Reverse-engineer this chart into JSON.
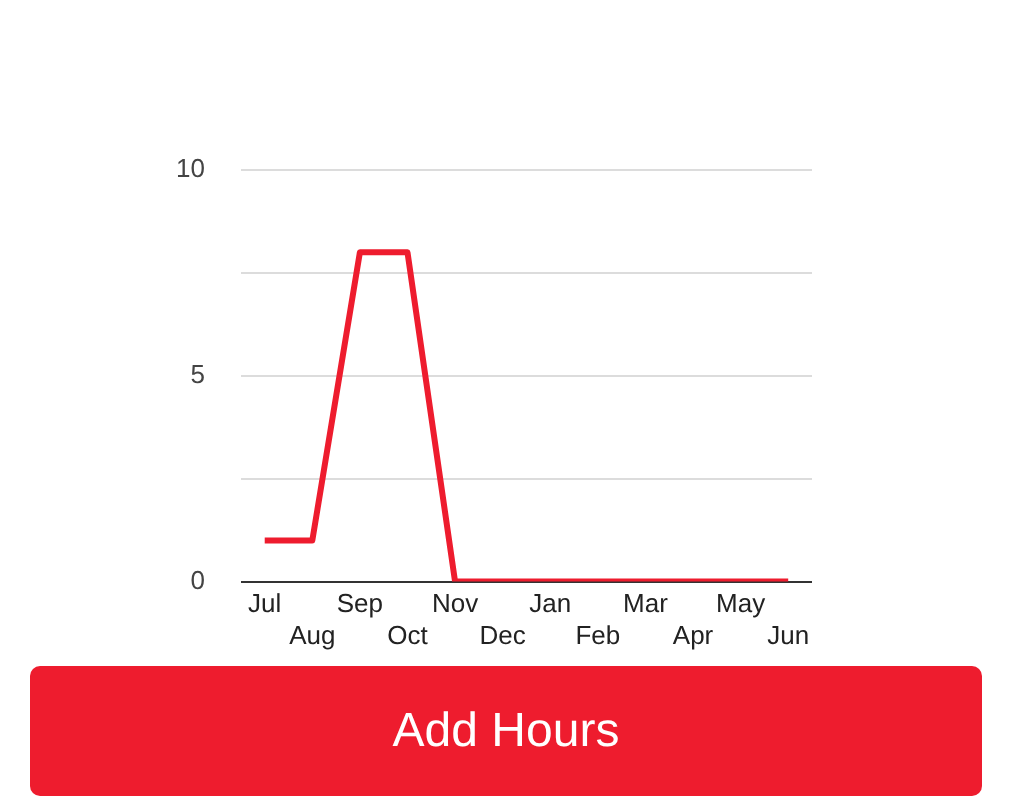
{
  "chart_data": {
    "type": "line",
    "categories": [
      "Jul",
      "Aug",
      "Sep",
      "Oct",
      "Nov",
      "Dec",
      "Jan",
      "Feb",
      "Mar",
      "Apr",
      "May",
      "Jun"
    ],
    "series": [
      {
        "color": "#ee1c2e",
        "values": [
          1,
          1,
          8,
          8,
          0,
          0,
          0,
          0,
          0,
          0,
          0,
          0
        ]
      }
    ],
    "ylim": [
      0,
      10
    ],
    "yticks": [
      0,
      {
        "value": 2.5,
        "label": null
      },
      5,
      {
        "value": 7.5,
        "label": null
      },
      10
    ],
    "grid": "y",
    "legend": false,
    "marker": "none",
    "line_style": "solid",
    "annotations": [
      "Add Hours"
    ]
  }
}
